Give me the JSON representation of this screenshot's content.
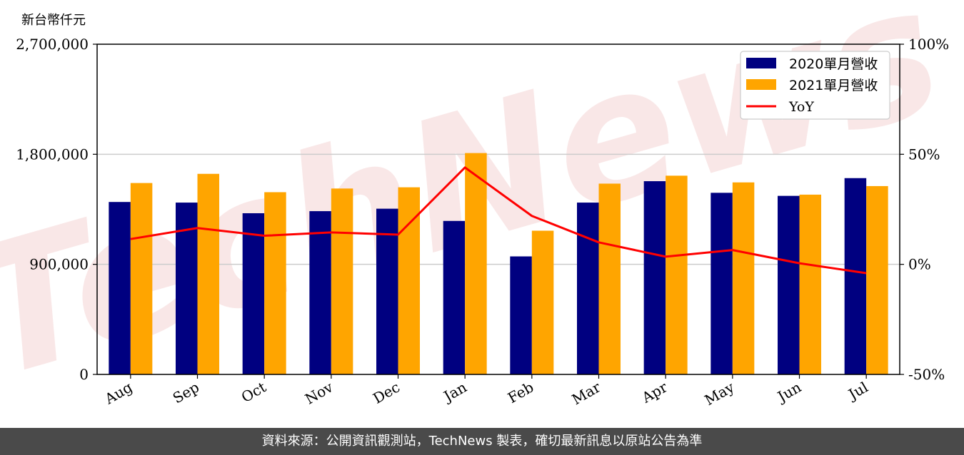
{
  "chart_data": {
    "type": "bar",
    "unit_label": "新台幣仟元",
    "categories": [
      "Aug",
      "Sep",
      "Oct",
      "Nov",
      "Dec",
      "Jan",
      "Feb",
      "Mar",
      "Apr",
      "May",
      "Jun",
      "Jul"
    ],
    "series": [
      {
        "name": "2020單月營收",
        "type": "bar",
        "color": "#000080",
        "values": [
          1410000,
          1405000,
          1318000,
          1335000,
          1355000,
          1255000,
          965000,
          1405000,
          1580000,
          1485000,
          1460000,
          1605000
        ]
      },
      {
        "name": "2021單月營收",
        "type": "bar",
        "color": "#FFA500",
        "values": [
          1565000,
          1640000,
          1490000,
          1520000,
          1530000,
          1810000,
          1175000,
          1560000,
          1625000,
          1570000,
          1470000,
          1540000
        ]
      },
      {
        "name": "YoY",
        "type": "line",
        "axis": "right",
        "color": "#FF0000",
        "values": [
          11.5,
          16.5,
          13,
          14.5,
          13.5,
          44,
          22,
          10,
          3.5,
          6.5,
          0.5,
          -4
        ]
      }
    ],
    "ylim": [
      0,
      2700000
    ],
    "yticks": [
      "0",
      "900,000",
      "1,800,000",
      "2,700,000"
    ],
    "ytick_values": [
      0,
      900000,
      1800000,
      2700000
    ],
    "y2lim": [
      -50,
      100
    ],
    "y2ticks": [
      "-50%",
      "0%",
      "50%",
      "100%"
    ],
    "y2tick_values": [
      -50,
      0,
      50,
      100
    ],
    "grid": "horizontal",
    "legend_position": "top-right"
  },
  "watermark": "TechNews",
  "footer": {
    "source_text": "資料來源：公開資訊觀測站，TechNews 製表，確切最新訊息以原站公告為準"
  }
}
